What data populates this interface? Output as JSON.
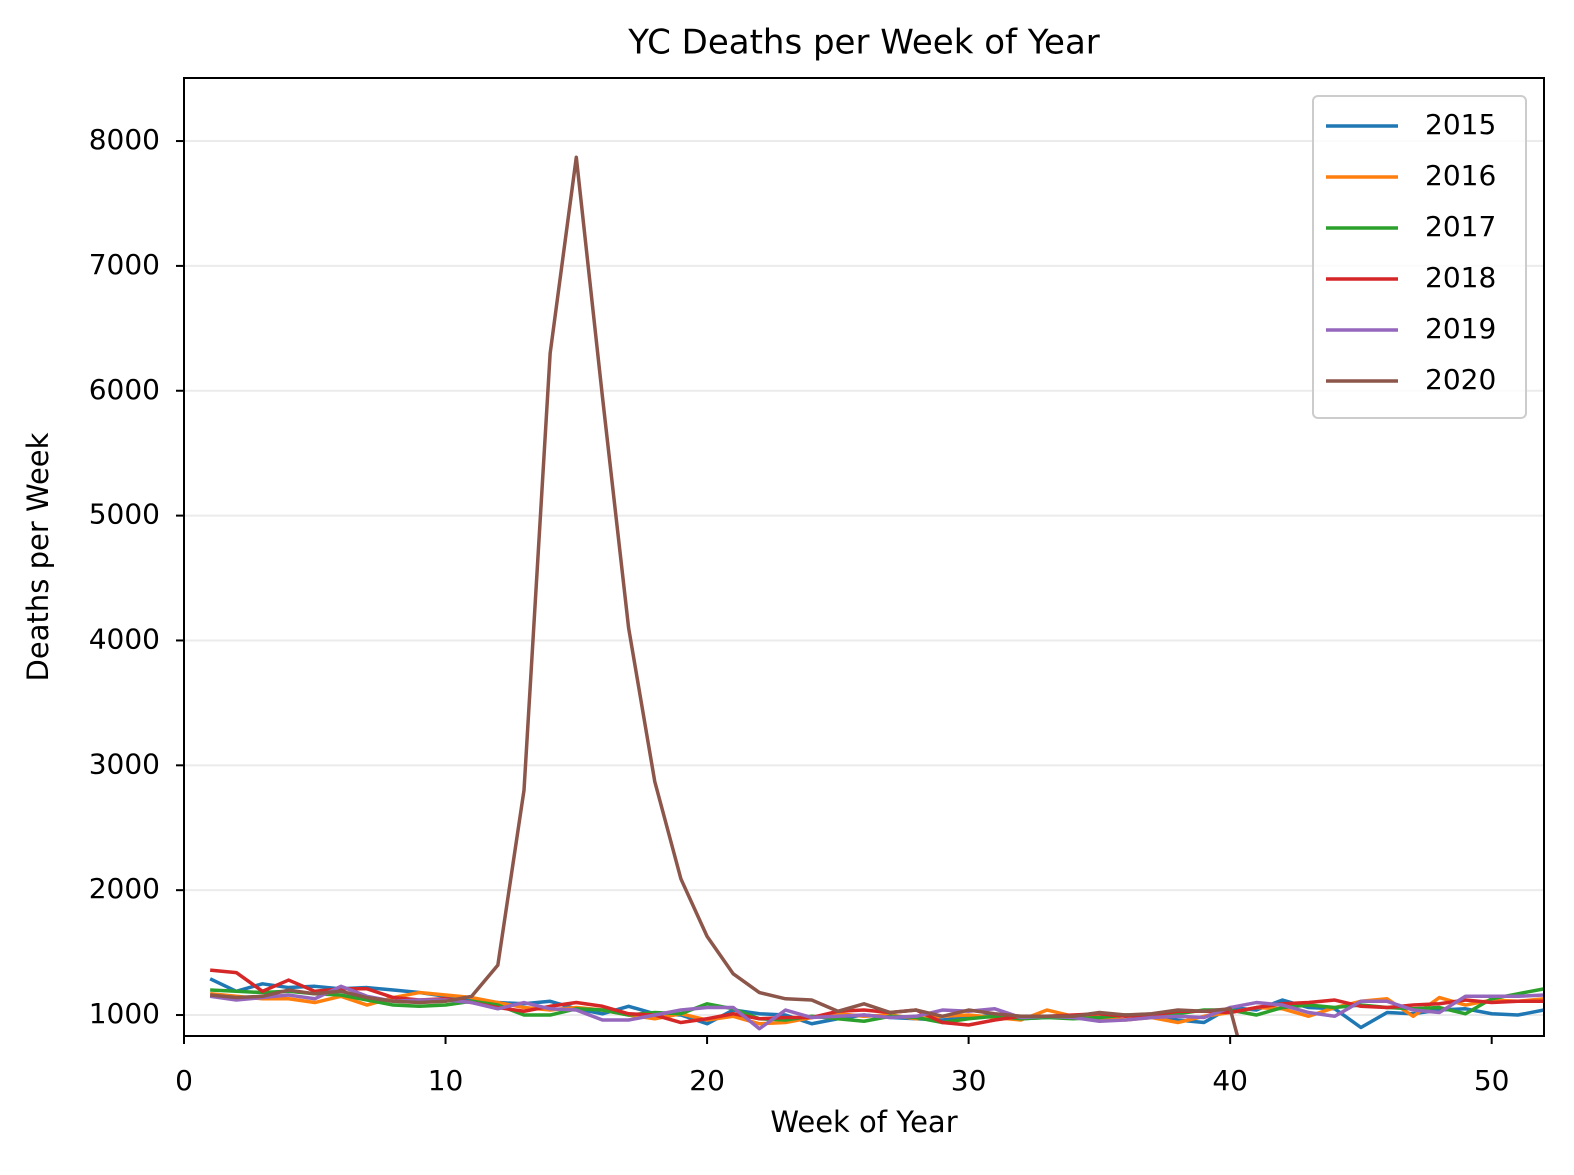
{
  "chart_data": {
    "type": "line",
    "title": "YC Deaths per Week of Year",
    "x_label": "Week of Year",
    "y_label": "Deaths per Week",
    "x": [
      1,
      2,
      3,
      4,
      5,
      6,
      7,
      8,
      9,
      10,
      11,
      12,
      13,
      14,
      15,
      16,
      17,
      18,
      19,
      20,
      21,
      22,
      23,
      24,
      25,
      26,
      27,
      28,
      29,
      30,
      31,
      32,
      33,
      34,
      35,
      36,
      37,
      38,
      39,
      40,
      41,
      42,
      43,
      44,
      45,
      46,
      47,
      48,
      49,
      50,
      51,
      52
    ],
    "series": [
      {
        "name": "2015",
        "color": "#1f77b4",
        "values": [
          1290,
          1190,
          1250,
          1220,
          1230,
          1210,
          1220,
          1200,
          1180,
          1150,
          1120,
          1100,
          1090,
          1110,
          1050,
          1010,
          1070,
          1010,
          1000,
          930,
          1040,
          1010,
          1000,
          930,
          970,
          1000,
          980,
          970,
          960,
          980,
          1000,
          970,
          980,
          990,
          960,
          1000,
          990,
          960,
          940,
          1060,
          1040,
          1120,
          1060,
          1050,
          900,
          1020,
          1010,
          1040,
          1050,
          1010,
          1000,
          1040
        ]
      },
      {
        "name": "2016",
        "color": "#ff7f0e",
        "values": [
          1170,
          1150,
          1130,
          1130,
          1100,
          1150,
          1080,
          1140,
          1180,
          1160,
          1140,
          1100,
          1060,
          1040,
          1060,
          1040,
          1000,
          970,
          1010,
          960,
          990,
          930,
          940,
          980,
          1010,
          990,
          1000,
          970,
          990,
          1000,
          980,
          960,
          1040,
          990,
          980,
          960,
          980,
          940,
          990,
          1020,
          1060,
          1050,
          990,
          1060,
          1110,
          1130,
          990,
          1140,
          1080,
          1120,
          1110,
          1130
        ]
      },
      {
        "name": "2017",
        "color": "#2ca02c",
        "values": [
          1200,
          1190,
          1180,
          1190,
          1170,
          1160,
          1120,
          1080,
          1070,
          1080,
          1110,
          1080,
          1000,
          1000,
          1050,
          1040,
          1000,
          1020,
          1010,
          1090,
          1050,
          970,
          960,
          990,
          970,
          950,
          990,
          980,
          940,
          970,
          990,
          970,
          980,
          970,
          980,
          1000,
          990,
          1010,
          1040,
          1040,
          1000,
          1060,
          1080,
          1060,
          1080,
          1060,
          1050,
          1060,
          1010,
          1130,
          1170,
          1210
        ]
      },
      {
        "name": "2018",
        "color": "#d62728",
        "values": [
          1360,
          1340,
          1190,
          1280,
          1190,
          1210,
          1210,
          1140,
          1120,
          1130,
          1100,
          1060,
          1030,
          1070,
          1100,
          1070,
          1010,
          1000,
          940,
          970,
          1010,
          970,
          980,
          980,
          1030,
          1040,
          1020,
          1040,
          940,
          920,
          960,
          990,
          990,
          1000,
          1010,
          990,
          1000,
          1030,
          1030,
          1020,
          1060,
          1090,
          1100,
          1120,
          1070,
          1060,
          1080,
          1090,
          1120,
          1100,
          1110,
          1110
        ]
      },
      {
        "name": "2019",
        "color": "#9467bd",
        "values": [
          1150,
          1120,
          1140,
          1160,
          1130,
          1230,
          1150,
          1110,
          1120,
          1120,
          1100,
          1050,
          1100,
          1050,
          1040,
          960,
          960,
          1000,
          1040,
          1060,
          1060,
          890,
          1040,
          980,
          990,
          1000,
          980,
          990,
          1040,
          1030,
          1050,
          980,
          990,
          980,
          950,
          960,
          980,
          990,
          980,
          1060,
          1100,
          1080,
          1020,
          990,
          1110,
          1110,
          1040,
          1020,
          1150,
          1150,
          1150,
          1160
        ]
      },
      {
        "name": "2020",
        "color": "#8c564b",
        "values": [
          1160,
          1140,
          1150,
          1200,
          1170,
          1190,
          1140,
          1110,
          1100,
          1110,
          1150,
          1400,
          2800,
          6300,
          7870,
          5950,
          4100,
          2870,
          2090,
          1630,
          1330,
          1180,
          1130,
          1120,
          1030,
          1090,
          1020,
          1040,
          990,
          1040,
          1010,
          990,
          990,
          990,
          1020,
          1000,
          1010,
          1040,
          1030,
          1050,
          270,
          null,
          null,
          null,
          null,
          null,
          null,
          null,
          null,
          null,
          null,
          null
        ]
      }
    ],
    "xlim": [
      0,
      52
    ],
    "ylim": [
      832,
      8505
    ],
    "xticks": [
      0,
      10,
      20,
      30,
      40,
      50
    ],
    "yticks": [
      1000,
      2000,
      3000,
      4000,
      5000,
      6000,
      7000,
      8000
    ],
    "grid": true,
    "legend": "upper right"
  }
}
